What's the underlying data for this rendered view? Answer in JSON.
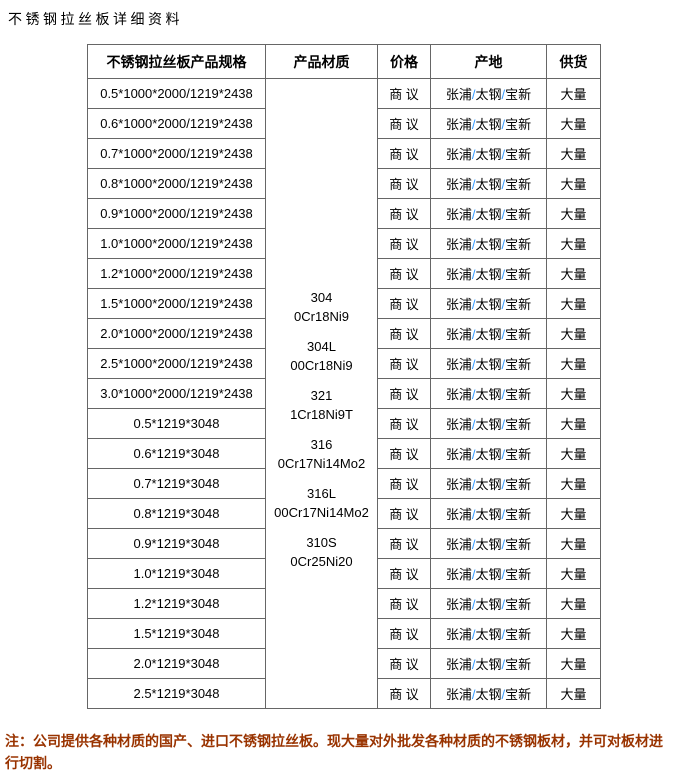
{
  "page": {
    "title": "不锈钢拉丝板详细资料",
    "note": "注：公司提供各种材质的国产、进口不锈钢拉丝板。现大量对外批发各种材质的不锈钢板材，并可对板材进行切割。"
  },
  "colors": {
    "background": "#ffffff",
    "text": "#000000",
    "table_border": "#666666",
    "note_text": "#993300",
    "origin_slash": "#3399ff"
  },
  "table": {
    "headers": [
      "不锈钢拉丝板产品规格",
      "产品材质",
      "价格",
      "产地",
      "供货"
    ],
    "specs": [
      "0.5*1000*2000/1219*2438",
      "0.6*1000*2000/1219*2438",
      "0.7*1000*2000/1219*2438",
      "0.8*1000*2000/1219*2438",
      "0.9*1000*2000/1219*2438",
      "1.0*1000*2000/1219*2438",
      "1.2*1000*2000/1219*2438",
      "1.5*1000*2000/1219*2438",
      "2.0*1000*2000/1219*2438",
      "2.5*1000*2000/1219*2438",
      "3.0*1000*2000/1219*2438",
      "0.5*1219*3048",
      "0.6*1219*3048",
      "0.7*1219*3048",
      "0.8*1219*3048",
      "0.9*1219*3048",
      "1.0*1219*3048",
      "1.2*1219*3048",
      "1.5*1219*3048",
      "2.0*1219*3048",
      "2.5*1219*3048"
    ],
    "materials": [
      {
        "grade": "304",
        "standard": "0Cr18Ni9"
      },
      {
        "grade": "304L",
        "standard": "00Cr18Ni9"
      },
      {
        "grade": "321",
        "standard": "1Cr18Ni9T"
      },
      {
        "grade": "316",
        "standard": "0Cr17Ni14Mo2"
      },
      {
        "grade": "316L",
        "standard": "00Cr17Ni14Mo2"
      },
      {
        "grade": "310S",
        "standard": "0Cr25Ni20"
      }
    ],
    "price": "商 议",
    "origin": {
      "parts": [
        "张浦",
        "太钢",
        "宝新"
      ],
      "separator": "/"
    },
    "supply": "大量"
  }
}
